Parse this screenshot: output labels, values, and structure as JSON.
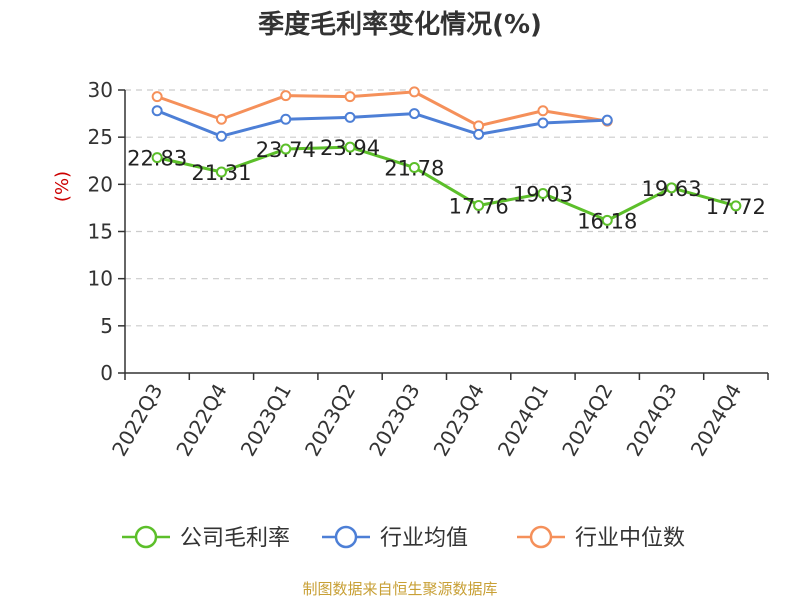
{
  "chart_data": {
    "type": "line",
    "title": "季度毛利率变化情况(%)",
    "ylabel": "(%)",
    "xlabel": "",
    "categories": [
      "2022Q3",
      "2022Q4",
      "2023Q1",
      "2023Q2",
      "2023Q3",
      "2023Q4",
      "2024Q1",
      "2024Q2",
      "2024Q3",
      "2024Q4"
    ],
    "ylim": [
      0,
      30
    ],
    "yticks": [
      0,
      5,
      10,
      15,
      20,
      25,
      30
    ],
    "grid": true,
    "legend_position": "bottom",
    "series": [
      {
        "name": "公司毛利率",
        "color": "#5cbf2a",
        "show_labels": true,
        "values": [
          22.83,
          21.31,
          23.74,
          23.94,
          21.78,
          17.76,
          19.03,
          16.18,
          19.63,
          17.72
        ],
        "labels": [
          "22.83",
          "21.31",
          "23.74",
          "23.94",
          "21.78",
          "17.76",
          "19.03",
          "16.18",
          "19.63",
          "17.72"
        ]
      },
      {
        "name": "行业均值",
        "color": "#4d7fd6",
        "show_labels": false,
        "values": [
          27.8,
          25.1,
          26.9,
          27.1,
          27.5,
          25.3,
          26.5,
          26.8,
          null,
          null
        ]
      },
      {
        "name": "行业中位数",
        "color": "#f5905a",
        "show_labels": false,
        "values": [
          29.3,
          26.9,
          29.4,
          29.3,
          29.8,
          26.2,
          27.8,
          26.7,
          null,
          null
        ]
      }
    ]
  },
  "source": "制图数据来自恒生聚源数据库"
}
